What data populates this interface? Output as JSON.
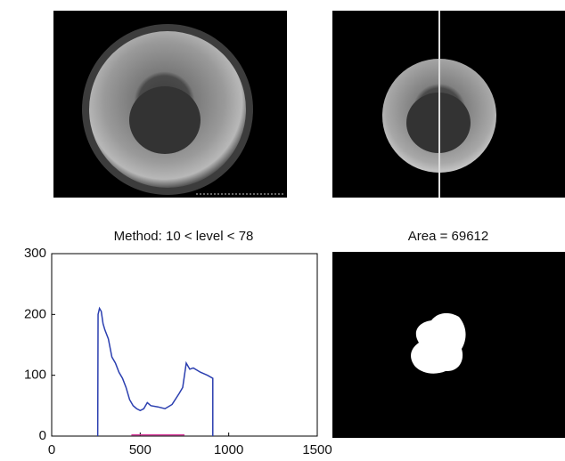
{
  "chart_data": {
    "type": "line",
    "title": "Method: 10 < level < 78",
    "series": [
      {
        "color": "#2b3fb0",
        "x": [
          260,
          262,
          270,
          280,
          290,
          300,
          320,
          340,
          360,
          380,
          400,
          420,
          440,
          460,
          480,
          500,
          520,
          540,
          560,
          600,
          640,
          680,
          720,
          740,
          760,
          780,
          800,
          840,
          880,
          910,
          910
        ],
        "values": [
          0,
          200,
          210,
          205,
          185,
          175,
          160,
          130,
          120,
          105,
          95,
          80,
          60,
          50,
          45,
          42,
          45,
          55,
          50,
          48,
          45,
          52,
          70,
          80,
          120,
          110,
          112,
          105,
          100,
          95,
          0
        ]
      },
      {
        "color": "#d63a9a",
        "x": [
          450,
          750
        ],
        "values": [
          2,
          2
        ]
      }
    ],
    "xlim": [
      0,
      1500
    ],
    "xticks": [
      0,
      500,
      1000,
      1500
    ],
    "ylim": [
      0,
      300
    ],
    "yticks": [
      0,
      100,
      200,
      300
    ]
  },
  "panels": {
    "area_title": "Area = 69612"
  }
}
